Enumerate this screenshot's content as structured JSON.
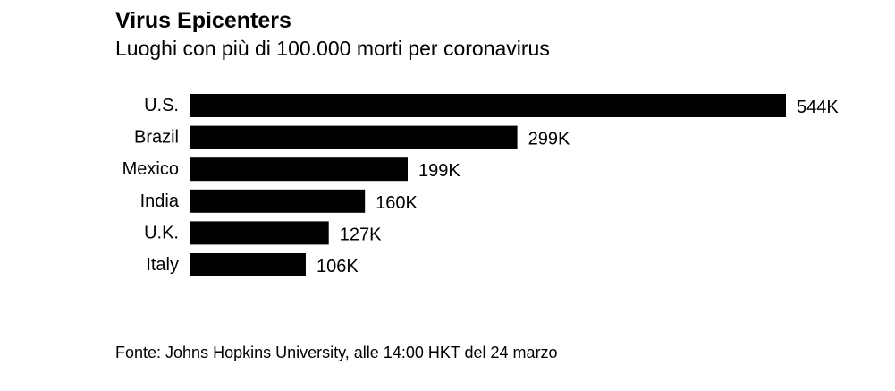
{
  "title": "Virus Epicenters",
  "subtitle": "Luoghi con più di 100.000 morti per coronavirus",
  "source": "Fonte: Johns Hopkins University, alle 14:00 HKT del 24 marzo",
  "colors": {
    "bar": "#000000",
    "text": "#000000",
    "background": "#ffffff"
  },
  "chart_data": {
    "type": "bar",
    "orientation": "horizontal",
    "categories": [
      "U.S.",
      "Brazil",
      "Mexico",
      "India",
      "U.K.",
      "Italy"
    ],
    "values": [
      544,
      299,
      199,
      160,
      127,
      106
    ],
    "value_labels": [
      "544K",
      "299K",
      "199K",
      "160K",
      "127K",
      "106K"
    ],
    "xlim": [
      0,
      544
    ],
    "grid": false,
    "legend": "none"
  }
}
